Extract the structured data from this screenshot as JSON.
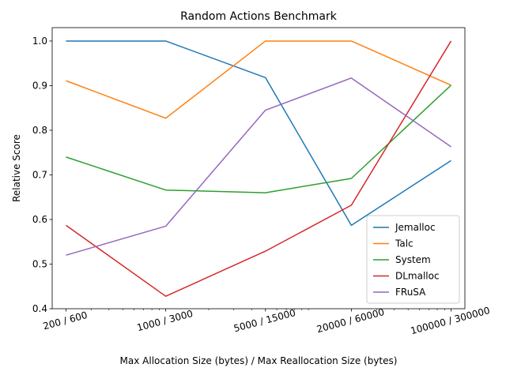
{
  "chart_data": {
    "type": "line",
    "title": "Random Actions Benchmark",
    "xlabel": "Max Allocation Size (bytes) / Max Reallocation Size (bytes)",
    "ylabel": "Relative Score",
    "x_scale": "log",
    "x": [
      200,
      1000,
      5000,
      20000,
      100000
    ],
    "categories": [
      "200 / 600",
      "1000 / 3000",
      "5000 / 15000",
      "20000 / 60000",
      "100000 / 300000"
    ],
    "ylim": [
      0.4,
      1.03
    ],
    "yticks": [
      "0.4",
      "0.5",
      "0.6",
      "0.7",
      "0.8",
      "0.9",
      "1.0"
    ],
    "grid": false,
    "legend_position": "lower-right",
    "series": [
      {
        "name": "Jemalloc",
        "color": "#1f77b4",
        "values": [
          1.0,
          1.0,
          0.918,
          0.587,
          0.732
        ]
      },
      {
        "name": "Talc",
        "color": "#ff7f0e",
        "values": [
          0.911,
          0.827,
          1.0,
          1.0,
          0.901
        ]
      },
      {
        "name": "System",
        "color": "#2ca02c",
        "values": [
          0.74,
          0.666,
          0.66,
          0.692,
          0.901
        ]
      },
      {
        "name": "DLmalloc",
        "color": "#d62728",
        "values": [
          0.587,
          0.428,
          0.529,
          0.632,
          1.0
        ]
      },
      {
        "name": "FRuSA",
        "color": "#9467bd",
        "values": [
          0.52,
          0.585,
          0.845,
          0.917,
          0.763
        ]
      }
    ]
  }
}
